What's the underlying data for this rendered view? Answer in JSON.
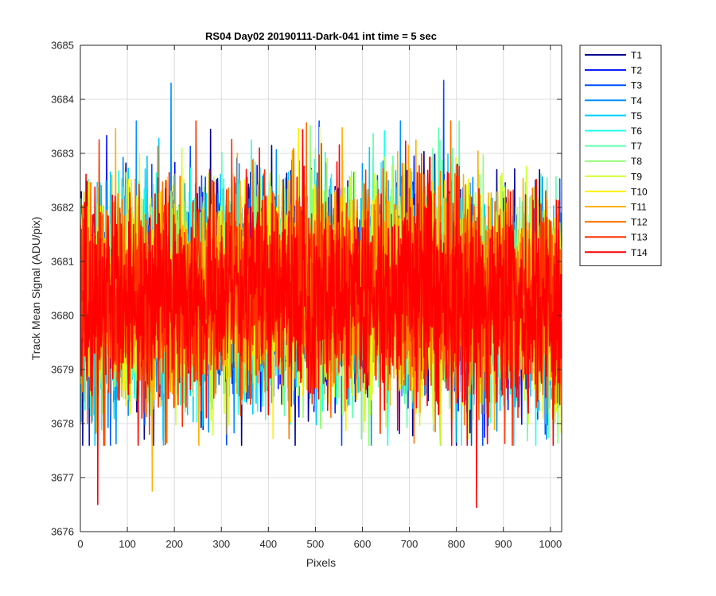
{
  "chart_data": {
    "type": "line",
    "title": "RS04 Day02 20190111-Dark-041 int time = 5 sec",
    "xlabel": "Pixels",
    "ylabel": "Track Mean Signal (ADU/pix)",
    "xlim": [
      0,
      1024
    ],
    "ylim": [
      3676,
      3685
    ],
    "xticks": [
      0,
      100,
      200,
      300,
      400,
      500,
      600,
      700,
      800,
      900,
      1000
    ],
    "yticks": [
      3676,
      3677,
      3678,
      3679,
      3680,
      3681,
      3682,
      3683,
      3684,
      3685
    ],
    "grid": true,
    "legend_position": "outside-top-right",
    "n_points_per_series": 1024,
    "signal_profile": {
      "x": [
        0,
        100,
        200,
        300,
        400,
        500,
        600,
        700,
        800,
        900,
        1024
      ],
      "mean": [
        3680.3,
        3680.35,
        3680.4,
        3680.45,
        3680.5,
        3680.5,
        3680.5,
        3680.45,
        3680.4,
        3680.3,
        3680.15
      ],
      "std": 0.95
    },
    "extremes": {
      "max": {
        "x": 193,
        "y": 3684.3,
        "series": "T4"
      },
      "max_2": {
        "x": 773,
        "y": 3684.35,
        "series": "T3"
      },
      "min": {
        "x": 37,
        "y": 3676.5,
        "series": "T14"
      },
      "min_2": {
        "x": 843,
        "y": 3676.45,
        "series": "T14"
      },
      "min_3": {
        "x": 153,
        "y": 3676.75,
        "series": "T11"
      }
    },
    "series": [
      {
        "name": "T1",
        "color": "#00008F"
      },
      {
        "name": "T2",
        "color": "#0010FF"
      },
      {
        "name": "T3",
        "color": "#0050FF"
      },
      {
        "name": "T4",
        "color": "#0090FF"
      },
      {
        "name": "T5",
        "color": "#00CFFF"
      },
      {
        "name": "T6",
        "color": "#20FFEF"
      },
      {
        "name": "T7",
        "color": "#60FFAF"
      },
      {
        "name": "T8",
        "color": "#8FFF70"
      },
      {
        "name": "T9",
        "color": "#CFFF30"
      },
      {
        "name": "T10",
        "color": "#FFF000"
      },
      {
        "name": "T11",
        "color": "#FFB000"
      },
      {
        "name": "T12",
        "color": "#FF7000"
      },
      {
        "name": "T13",
        "color": "#FF3000"
      },
      {
        "name": "T14",
        "color": "#FF0000"
      }
    ]
  }
}
